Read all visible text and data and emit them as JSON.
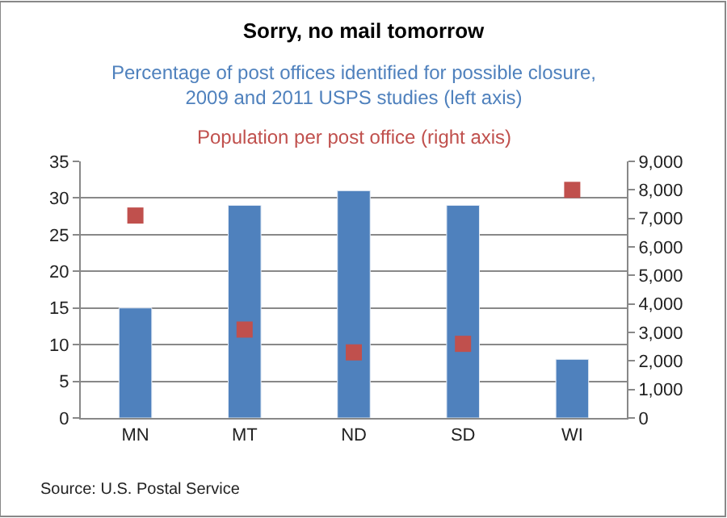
{
  "chart_data": {
    "type": "bar",
    "title": "Sorry, no mail tomorrow",
    "categories": [
      "MN",
      "MT",
      "ND",
      "SD",
      "WI"
    ],
    "series": [
      {
        "name": "Percentage of post offices identified for possible closure,\n2009 and 2011 USPS studies (left axis)",
        "color": "#4f81bd",
        "values": [
          15,
          29,
          31,
          29,
          8
        ]
      },
      {
        "name": "Population per post office (right axis)",
        "color": "#c0504d",
        "type": "scatter",
        "axis": "y2",
        "marker": "square",
        "values": [
          7100,
          3100,
          2300,
          2600,
          8000
        ]
      }
    ],
    "ylim": [
      0,
      35
    ],
    "yticks": [
      0,
      5,
      10,
      15,
      20,
      25,
      30,
      35
    ],
    "y2lim": [
      0,
      9000
    ],
    "y2ticks": [
      {
        "value": 0,
        "label": "0"
      },
      {
        "value": 1000,
        "label": "1,000"
      },
      {
        "value": 2000,
        "label": "2,000"
      },
      {
        "value": 3000,
        "label": "3,000"
      },
      {
        "value": 4000,
        "label": "4,000"
      },
      {
        "value": 5000,
        "label": "5,000"
      },
      {
        "value": 6000,
        "label": "6,000"
      },
      {
        "value": 7000,
        "label": "7,000"
      },
      {
        "value": 8000,
        "label": "8,000"
      },
      {
        "value": 9000,
        "label": "9,000"
      }
    ],
    "grid": "y",
    "legend": false,
    "annotations": [
      "Source: U.S. Postal Service"
    ]
  }
}
